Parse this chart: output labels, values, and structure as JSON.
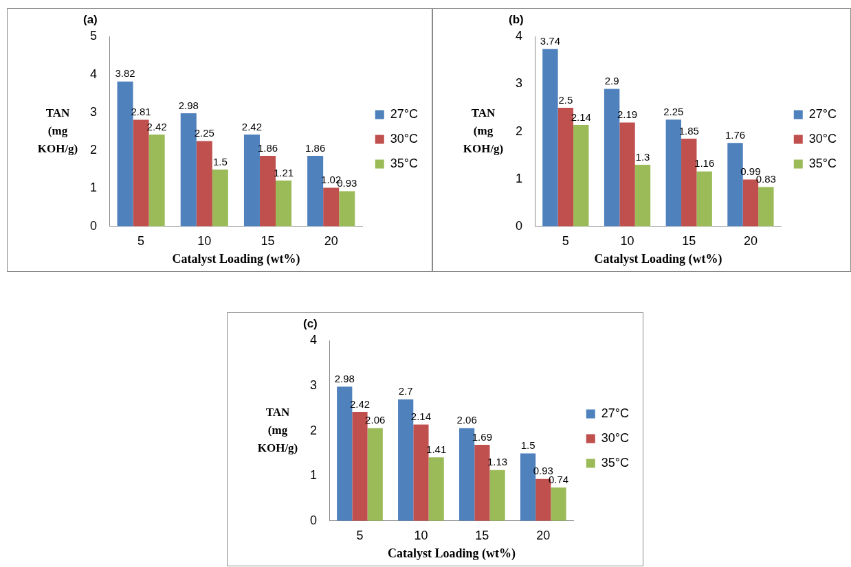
{
  "chart_data": [
    {
      "type": "bar",
      "title": "(a)",
      "xlabel": "Catalyst Loading (wt%)",
      "ylabel": "TAN (mg KOH/g)",
      "categories": [
        "5",
        "10",
        "15",
        "20"
      ],
      "ylim": [
        0,
        5
      ],
      "yticks": [
        0,
        1,
        2,
        3,
        4,
        5
      ],
      "legend": "right",
      "data_labels": true,
      "series": [
        {
          "name": "27°C",
          "color": "#4f81bd",
          "values": [
            3.82,
            2.98,
            2.42,
            1.86
          ]
        },
        {
          "name": "30°C",
          "color": "#c0504d",
          "values": [
            2.81,
            2.25,
            1.86,
            1.02
          ]
        },
        {
          "name": "35°C",
          "color": "#9bbb59",
          "values": [
            2.42,
            1.5,
            1.21,
            0.93
          ]
        }
      ]
    },
    {
      "type": "bar",
      "title": "(b)",
      "xlabel": "Catalyst Loading (wt%)",
      "ylabel": "TAN (mg KOH/g)",
      "categories": [
        "5",
        "10",
        "15",
        "20"
      ],
      "ylim": [
        0,
        4
      ],
      "yticks": [
        0,
        1,
        2,
        3,
        4
      ],
      "legend": "right",
      "data_labels": true,
      "series": [
        {
          "name": "27°C",
          "color": "#4f81bd",
          "values": [
            3.74,
            2.9,
            2.25,
            1.76
          ]
        },
        {
          "name": "30°C",
          "color": "#c0504d",
          "values": [
            2.5,
            2.19,
            1.85,
            0.99
          ]
        },
        {
          "name": "35°C",
          "color": "#9bbb59",
          "values": [
            2.14,
            1.3,
            1.16,
            0.83
          ]
        }
      ]
    },
    {
      "type": "bar",
      "title": "(c)",
      "xlabel": "Catalyst Loading (wt%)",
      "ylabel": "TAN (mg KOH/g)",
      "categories": [
        "5",
        "10",
        "15",
        "20"
      ],
      "ylim": [
        0,
        4
      ],
      "yticks": [
        0,
        1,
        2,
        3,
        4
      ],
      "legend": "right",
      "data_labels": true,
      "series": [
        {
          "name": "27°C",
          "color": "#4f81bd",
          "values": [
            2.98,
            2.7,
            2.06,
            1.5
          ]
        },
        {
          "name": "30°C",
          "color": "#c0504d",
          "values": [
            2.42,
            2.14,
            1.69,
            0.93
          ]
        },
        {
          "name": "35°C",
          "color": "#9bbb59",
          "values": [
            2.06,
            1.41,
            1.13,
            0.74
          ]
        }
      ]
    }
  ]
}
